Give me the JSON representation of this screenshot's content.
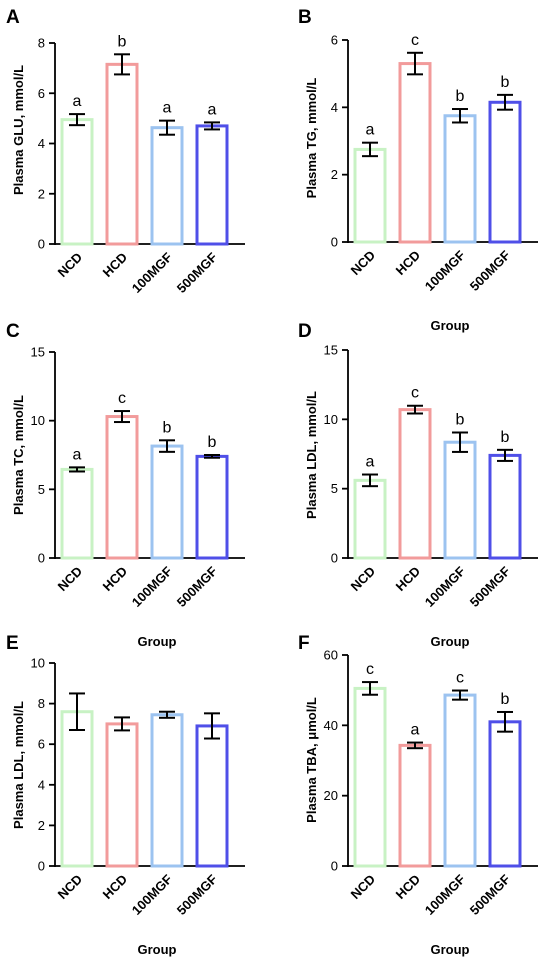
{
  "chart_data": [
    {
      "type": "bar",
      "panel": "A",
      "categories": [
        "NCD",
        "HCD",
        "100MGF",
        "500MGF"
      ],
      "values": [
        4.95,
        7.15,
        4.63,
        4.7
      ],
      "errors": [
        0.22,
        0.4,
        0.28,
        0.14
      ],
      "significance": [
        "a",
        "b",
        "a",
        "a"
      ],
      "colors": [
        "#c8f2c4",
        "#f29b9b",
        "#9cc3f0",
        "#4f4fe8"
      ],
      "ylabel": "Plasma GLU, mmol/L",
      "xlabel": "",
      "ylim": [
        0,
        8
      ],
      "yticks": [
        "0",
        "2",
        "4",
        "6",
        "8"
      ]
    },
    {
      "type": "bar",
      "panel": "B",
      "categories": [
        "NCD",
        "HCD",
        "100MGF",
        "500MGF"
      ],
      "values": [
        2.75,
        5.3,
        3.75,
        4.15
      ],
      "errors": [
        0.2,
        0.32,
        0.2,
        0.22
      ],
      "significance": [
        "a",
        "c",
        "b",
        "b"
      ],
      "colors": [
        "#c8f2c4",
        "#f29b9b",
        "#9cc3f0",
        "#4f4fe8"
      ],
      "ylabel": "Plasma TG, mmol/L",
      "xlabel": "Group",
      "ylim": [
        0,
        6
      ],
      "yticks": [
        "0",
        "2",
        "4",
        "6"
      ]
    },
    {
      "type": "bar",
      "panel": "C",
      "categories": [
        "NCD",
        "HCD",
        "100MGF",
        "500MGF"
      ],
      "values": [
        6.45,
        10.3,
        8.15,
        7.4
      ],
      "errors": [
        0.15,
        0.4,
        0.42,
        0.1
      ],
      "significance": [
        "a",
        "c",
        "b",
        "b"
      ],
      "colors": [
        "#c8f2c4",
        "#f29b9b",
        "#9cc3f0",
        "#4f4fe8"
      ],
      "ylabel": "Plasma TC, mmol/L",
      "xlabel": "Group",
      "ylim": [
        0,
        15
      ],
      "yticks": [
        "0",
        "5",
        "10",
        "15"
      ]
    },
    {
      "type": "bar",
      "panel": "D",
      "categories": [
        "NCD",
        "HCD",
        "100MGF",
        "500MGF"
      ],
      "values": [
        5.6,
        10.7,
        8.35,
        7.4
      ],
      "errors": [
        0.42,
        0.28,
        0.7,
        0.4
      ],
      "significance": [
        "a",
        "c",
        "b",
        "b"
      ],
      "colors": [
        "#c8f2c4",
        "#f29b9b",
        "#9cc3f0",
        "#4f4fe8"
      ],
      "ylabel": "Plasma LDL, mmol/L",
      "xlabel": "Group",
      "ylim": [
        0,
        15
      ],
      "yticks": [
        "0",
        "5",
        "10",
        "15"
      ]
    },
    {
      "type": "bar",
      "panel": "E",
      "categories": [
        "NCD",
        "HCD",
        "100MGF",
        "500MGF"
      ],
      "values": [
        7.6,
        7.0,
        7.45,
        6.9
      ],
      "errors": [
        0.9,
        0.32,
        0.15,
        0.62
      ],
      "significance": [
        "",
        "",
        "",
        ""
      ],
      "colors": [
        "#c8f2c4",
        "#f29b9b",
        "#9cc3f0",
        "#4f4fe8"
      ],
      "ylabel": "Plasma LDL, mmol/L",
      "xlabel": "Group",
      "ylim": [
        0,
        10
      ],
      "yticks": [
        "0",
        "2",
        "4",
        "6",
        "8",
        "10"
      ]
    },
    {
      "type": "bar",
      "panel": "F",
      "categories": [
        "NCD",
        "HCD",
        "100MGF",
        "500MGF"
      ],
      "values": [
        50.5,
        34.3,
        48.6,
        41.0
      ],
      "errors": [
        1.8,
        0.8,
        1.3,
        2.8
      ],
      "significance": [
        "c",
        "a",
        "c",
        "b"
      ],
      "colors": [
        "#c8f2c4",
        "#f29b9b",
        "#9cc3f0",
        "#4f4fe8"
      ],
      "ylabel": "Plasma TBA, μmol/L",
      "xlabel": "Group",
      "ylim": [
        0,
        60
      ],
      "yticks": [
        "0",
        "20",
        "40",
        "60"
      ]
    }
  ]
}
